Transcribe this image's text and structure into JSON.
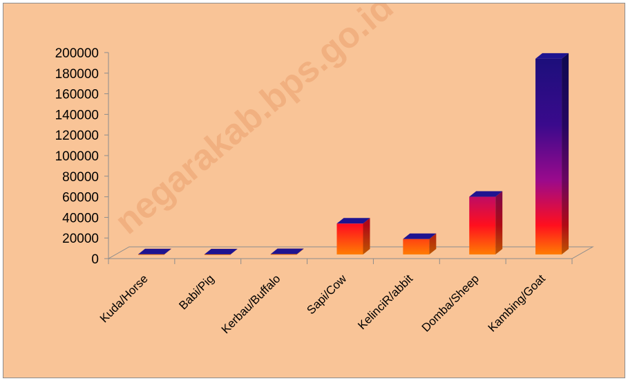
{
  "chart_data": {
    "type": "bar",
    "categories": [
      "Kuda/Horse",
      "Babi/Pig",
      "Kerbau/Buffalo",
      "Sapi/Cow",
      "KelinciR/abbit",
      "Domba/Sheep",
      "Kambing/Goat"
    ],
    "series": [
      {
        "values": [
          200,
          100,
          300,
          30000,
          15000,
          56000,
          190000
        ]
      }
    ],
    "y_ticks": [
      "0",
      "20000",
      "40000",
      "60000",
      "80000",
      "100000",
      "120000",
      "140000",
      "160000",
      "180000",
      "200000"
    ],
    "ylim": [
      0,
      200000
    ],
    "title": "",
    "xlabel": "",
    "ylabel": "",
    "grid": false,
    "legend": "none",
    "style": "3d-column-gradient",
    "colors": {
      "background": "#f9c497",
      "bar_top": "#1a0f7a",
      "bar_mid": "#9a0a8c",
      "bar_low": "#ff0f1e",
      "bar_base": "#ff8a00",
      "axis": "#8c8c8c"
    }
  },
  "watermark": "negarakab.bps.go.id"
}
